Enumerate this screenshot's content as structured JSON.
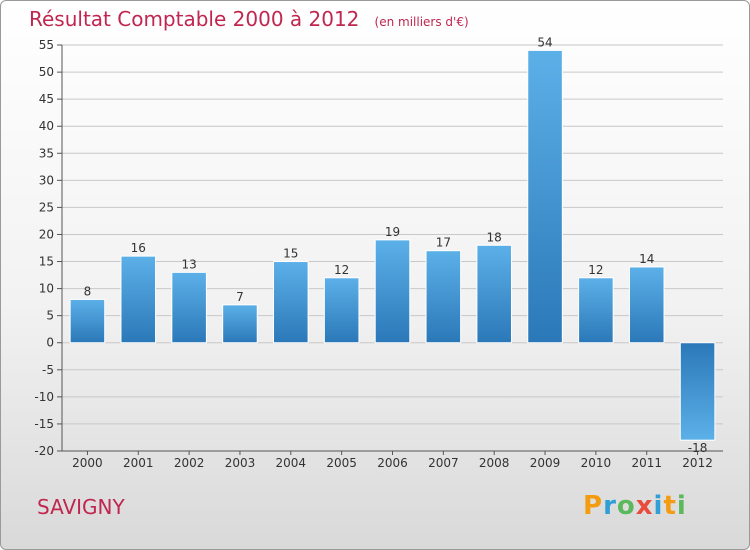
{
  "header": {
    "title": "Résultat Comptable 2000 à 2012",
    "subtitle": "(en milliers d'€)"
  },
  "footer": {
    "city": "SAVIGNY",
    "brand_letters": [
      {
        "char": "P",
        "color": "#f39c12"
      },
      {
        "char": "r",
        "color": "#2f9fd6"
      },
      {
        "char": "o",
        "color": "#5cb85c"
      },
      {
        "char": "x",
        "color": "#e74c3c"
      },
      {
        "char": "i",
        "color": "#2f9fd6"
      },
      {
        "char": "t",
        "color": "#f39c12"
      },
      {
        "char": "i",
        "color": "#5cb85c"
      }
    ]
  },
  "chart_data": {
    "type": "bar",
    "title": "Résultat Comptable 2000 à 2012",
    "subtitle": "(en milliers d'€)",
    "categories": [
      "2000",
      "2001",
      "2002",
      "2003",
      "2004",
      "2005",
      "2006",
      "2007",
      "2008",
      "2009",
      "2010",
      "2011",
      "2012"
    ],
    "values": [
      8,
      16,
      13,
      7,
      15,
      12,
      19,
      17,
      18,
      54,
      12,
      14,
      -18
    ],
    "ylim": [
      -20,
      55
    ],
    "yticks": [
      55,
      50,
      45,
      40,
      35,
      30,
      25,
      20,
      15,
      10,
      5,
      0,
      -5,
      -10,
      -15,
      -20
    ],
    "grid": true,
    "xlabel": "",
    "ylabel": "",
    "colors": {
      "bar_light": "#5cb0e8",
      "bar_dark": "#2b78b8",
      "grid": "#c8c8c8",
      "axis": "#555555"
    }
  }
}
